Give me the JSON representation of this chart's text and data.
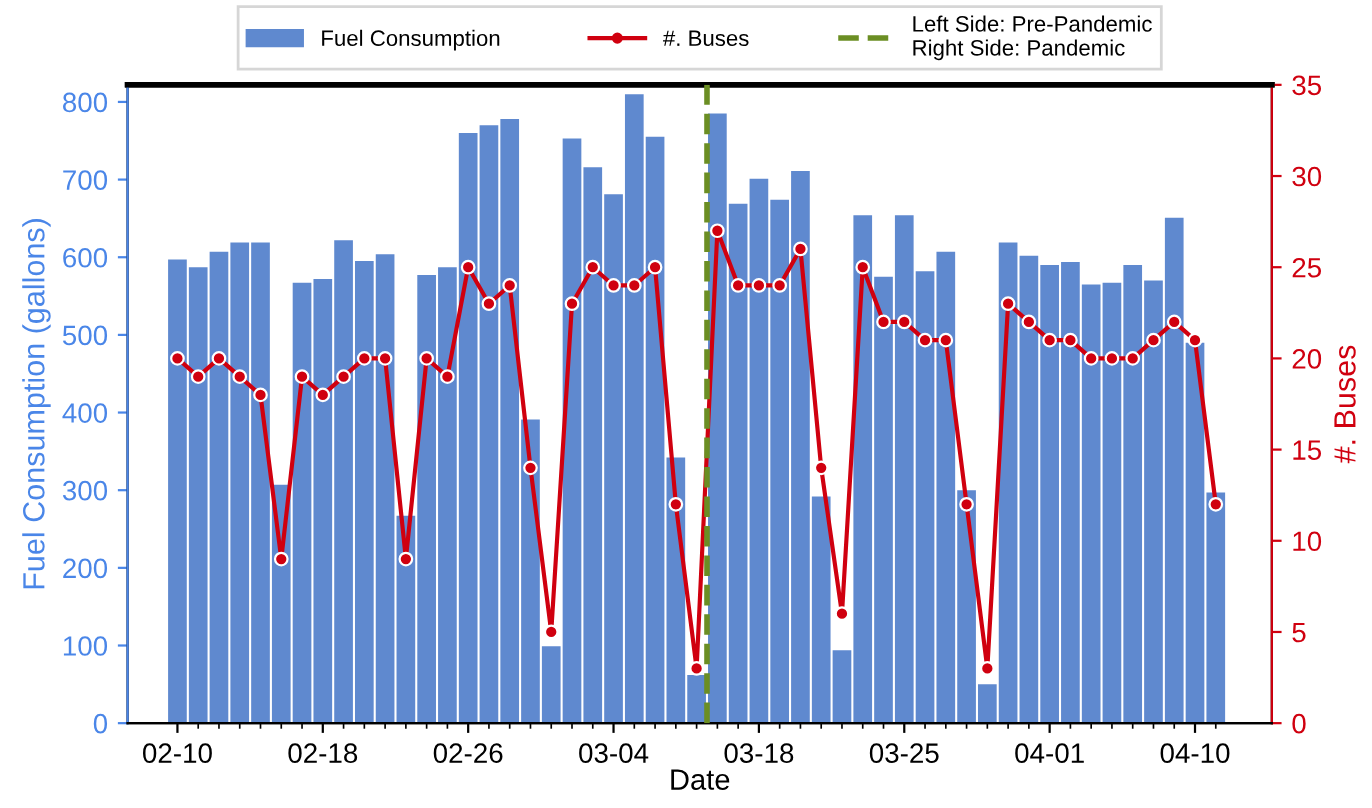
{
  "chart_data": {
    "type": "bar",
    "xlabel": "Date",
    "ylabel": "Fuel Consumption (gallons)",
    "y2label": "#. Buses",
    "categories": [
      "02-10",
      null,
      null,
      null,
      null,
      null,
      null,
      "02-18",
      null,
      null,
      null,
      null,
      null,
      null,
      "02-26",
      null,
      null,
      null,
      null,
      null,
      null,
      "03-04",
      null,
      null,
      null,
      null,
      null,
      null,
      "03-18",
      null,
      null,
      null,
      null,
      null,
      null,
      "03-25",
      null,
      null,
      null,
      null,
      null,
      null,
      "04-01",
      null,
      null,
      null,
      null,
      null,
      null,
      "04-10",
      null
    ],
    "series": [
      {
        "name": "Fuel Consumption",
        "color": "#5f89cf",
        "values": [
          597,
          587,
          607,
          619,
          619,
          307,
          567,
          572,
          622,
          595,
          604,
          267,
          577,
          587,
          760,
          770,
          778,
          391,
          99,
          753,
          716,
          681,
          810,
          755,
          342,
          62,
          785,
          669,
          701,
          674,
          711,
          292,
          94,
          654,
          575,
          654,
          582,
          607,
          300,
          50,
          619,
          602,
          590,
          594,
          565,
          567,
          590,
          570,
          651,
          490,
          297
        ]
      },
      {
        "name": "#. Buses",
        "type": "line",
        "axis": "y2",
        "color": "#d0000f",
        "marker": "circle",
        "values": [
          20,
          19,
          20,
          19,
          18,
          9,
          19,
          18,
          19,
          20,
          20,
          9,
          20,
          19,
          25,
          23,
          24,
          14,
          5,
          23,
          25,
          24,
          24,
          25,
          12,
          3,
          27,
          24,
          24,
          24,
          26,
          14,
          6,
          25,
          22,
          22,
          21,
          21,
          12,
          3,
          23,
          22,
          21,
          21,
          20,
          20,
          20,
          21,
          22,
          21,
          12
        ]
      }
    ],
    "ref_lines": [
      {
        "axis": "x",
        "label": "Left Side: Pre-Pandemic\nRight Side: Pandemic",
        "color": "#6b8e23",
        "line_style": "dashed"
      }
    ],
    "ylim": [
      0,
      822
    ],
    "yticks": [
      0,
      100,
      200,
      300,
      400,
      500,
      600,
      700,
      800
    ],
    "y2lim": [
      0,
      35
    ],
    "y2ticks": [
      0,
      5,
      10,
      15,
      20,
      25,
      30,
      35
    ],
    "legend": "top",
    "grid": false
  }
}
